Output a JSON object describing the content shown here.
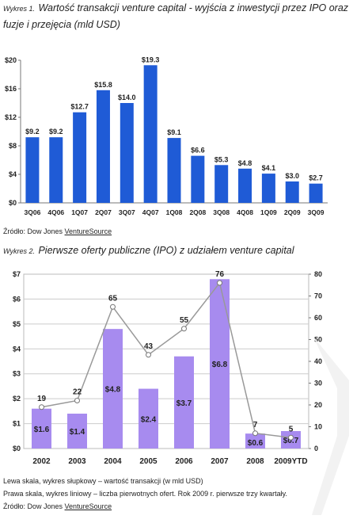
{
  "chart1": {
    "caption_prefix": "Wykres 1.",
    "caption_text": "Wartość transakcji venture capital - wyjścia z inwestycji przez IPO oraz fuzje i przejęcia (mld USD)",
    "source_prefix": "Źródło: Dow Jones ",
    "source_name": "VentureSource"
  },
  "chart2": {
    "caption_prefix": "Wykres 2.",
    "caption_text": "Pierwsze oferty publiczne (IPO) z udziałem venture capital",
    "note_left": "Lewa skala, wykres słupkowy – wartość transakcji (w mld USD)",
    "note_right": "Prawa skala, wykres liniowy – liczba pierwotnych ofert. Rok 2009 r. pierwsze trzy kwartały.",
    "source_prefix": "Źródło: Dow Jones ",
    "source_name": "VentureSource"
  },
  "chart_data": [
    {
      "type": "bar",
      "categories": [
        "3Q06",
        "4Q06",
        "1Q07",
        "2Q07",
        "3Q07",
        "4Q07",
        "1Q08",
        "2Q08",
        "3Q08",
        "4Q08",
        "1Q09",
        "2Q09",
        "3Q09"
      ],
      "values": [
        9.2,
        9.2,
        12.7,
        15.8,
        14.0,
        19.3,
        9.1,
        6.6,
        5.3,
        4.8,
        4.1,
        3.0,
        2.7
      ],
      "labels": [
        "$9.2",
        "$9.2",
        "$12.7",
        "$15.8",
        "$14.0",
        "$19.3",
        "$9.1",
        "$6.6",
        "$5.3",
        "$4.8",
        "$4.1",
        "$3.0",
        "$2.7"
      ],
      "ylim": [
        0,
        20
      ],
      "yticks": [
        0,
        4,
        8,
        12,
        16,
        20
      ],
      "ytick_labels": [
        "$0",
        "$4",
        "$8",
        "$12",
        "$16",
        "$20"
      ],
      "grid": false,
      "bar_color": "#1f5bd6"
    },
    {
      "type": "bar+line",
      "categories": [
        "2002",
        "2003",
        "2004",
        "2005",
        "2006",
        "2007",
        "2008",
        "2009YTD"
      ],
      "series": [
        {
          "kind": "bar",
          "axis": "left",
          "values": [
            1.6,
            1.4,
            4.8,
            2.4,
            3.7,
            6.8,
            0.6,
            0.7
          ],
          "labels": [
            "$1.6",
            "$1.4",
            "$4.8",
            "$2.4",
            "$3.7",
            "$6.8",
            "$0.6",
            "$0.7"
          ],
          "color": "#a78bef"
        },
        {
          "kind": "line",
          "axis": "right",
          "values": [
            19,
            22,
            65,
            43,
            55,
            76,
            7,
            5
          ],
          "labels": [
            "19",
            "22",
            "65",
            "43",
            "55",
            "76",
            "7",
            "5"
          ],
          "color": "#999999"
        }
      ],
      "ylim_left": [
        0,
        7
      ],
      "yticks_left_labels": [
        "$0",
        "$1",
        "$2",
        "$3",
        "$4",
        "$5",
        "$6",
        "$7"
      ],
      "ylim_right": [
        0,
        80
      ],
      "yticks_right_labels": [
        "0",
        "10",
        "20",
        "30",
        "40",
        "50",
        "60",
        "70",
        "80"
      ],
      "grid": true,
      "legend": "none"
    }
  ]
}
